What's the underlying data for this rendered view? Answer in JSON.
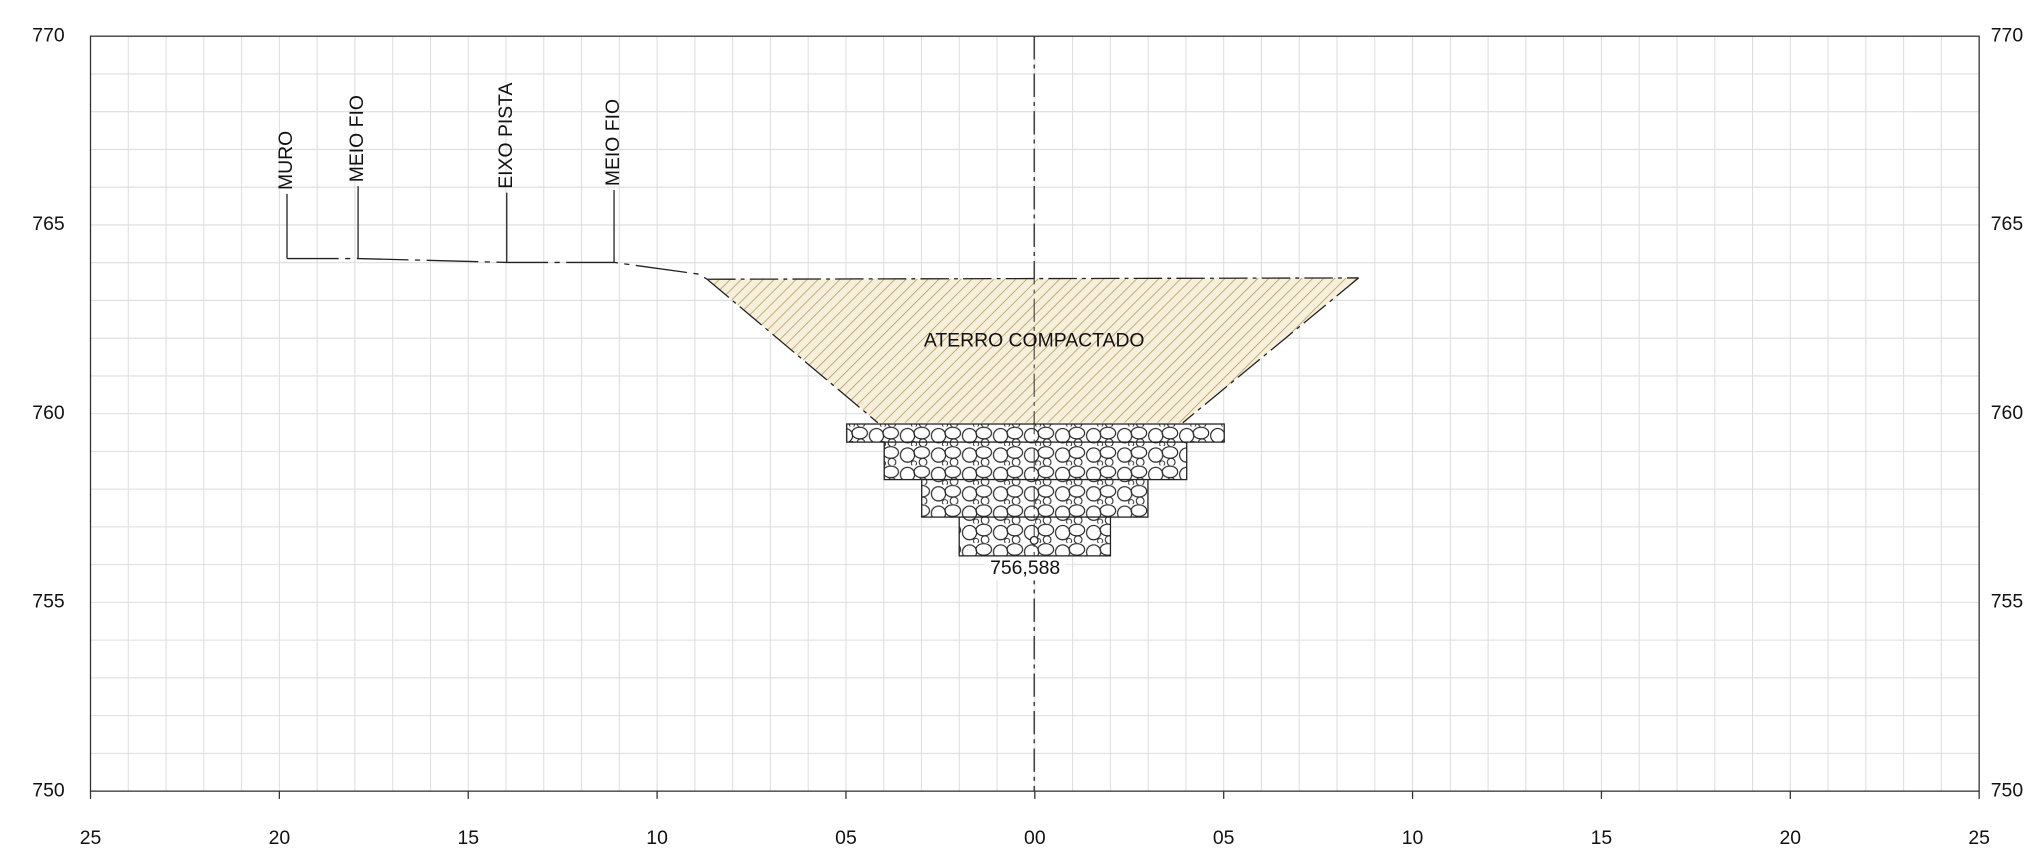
{
  "axes": {
    "y_left": [
      "770",
      "765",
      "760",
      "755",
      "750"
    ],
    "y_right": [
      "770",
      "765",
      "760",
      "755",
      "750"
    ],
    "x": [
      "25",
      "20",
      "15",
      "10",
      "05",
      "00",
      "05",
      "10",
      "15",
      "20",
      "25"
    ]
  },
  "annotations": {
    "markers": [
      "MURO",
      "MEIO FIO",
      "EIXO PISTA",
      "MEIO FIO"
    ],
    "fill_label": "ATERRO COMPACTADO",
    "elevation": "756,588"
  }
}
